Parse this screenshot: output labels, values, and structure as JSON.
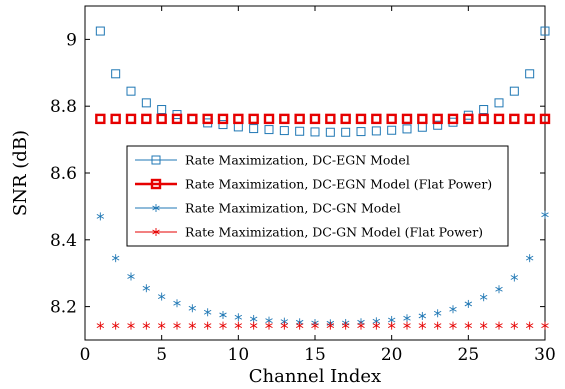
{
  "chart_data": {
    "type": "scatter",
    "xlabel": "Channel Index",
    "ylabel": "SNR (dB)",
    "xlim": [
      0,
      30
    ],
    "ylim": [
      8.1,
      9.1
    ],
    "xticks": [
      0,
      5,
      10,
      15,
      20,
      25,
      30
    ],
    "yticks": [
      8.2,
      8.4,
      8.6,
      8.8,
      9
    ],
    "ytick_labels": [
      "8.2",
      "8.4",
      "8.6",
      "8.8",
      "9"
    ],
    "grid": false,
    "legend_position": "center",
    "x": [
      1,
      2,
      3,
      4,
      5,
      6,
      7,
      8,
      9,
      10,
      11,
      12,
      13,
      14,
      15,
      16,
      17,
      18,
      19,
      20,
      21,
      22,
      23,
      24,
      25,
      26,
      27,
      28,
      29,
      30
    ],
    "series": [
      {
        "name": "Rate Maximization, DC-EGN Model",
        "marker": "square-open",
        "color": "#1f77b4",
        "values": [
          9.025,
          8.897,
          8.845,
          8.81,
          8.79,
          8.775,
          8.76,
          8.75,
          8.745,
          8.738,
          8.733,
          8.73,
          8.727,
          8.725,
          8.723,
          8.722,
          8.722,
          8.724,
          8.726,
          8.728,
          8.732,
          8.737,
          8.743,
          8.752,
          8.773,
          8.79,
          8.81,
          8.845,
          8.897,
          9.025
        ]
      },
      {
        "name": "Rate Maximization, DC-EGN Model (Flat Power)",
        "marker": "square-open-bold",
        "color": "#e60000",
        "values": [
          8.762,
          8.762,
          8.762,
          8.762,
          8.762,
          8.762,
          8.762,
          8.762,
          8.762,
          8.762,
          8.762,
          8.762,
          8.762,
          8.762,
          8.762,
          8.762,
          8.762,
          8.762,
          8.762,
          8.762,
          8.762,
          8.762,
          8.762,
          8.762,
          8.762,
          8.762,
          8.762,
          8.762,
          8.762,
          8.762
        ]
      },
      {
        "name": "Rate Maximization, DC-GN Model",
        "marker": "asterisk",
        "color": "#1f77b4",
        "values": [
          8.47,
          8.345,
          8.29,
          8.255,
          8.23,
          8.21,
          8.195,
          8.183,
          8.175,
          8.168,
          8.163,
          8.158,
          8.155,
          8.153,
          8.151,
          8.15,
          8.151,
          8.153,
          8.156,
          8.16,
          8.165,
          8.172,
          8.18,
          8.192,
          8.208,
          8.228,
          8.252,
          8.287,
          8.345,
          8.475
        ]
      },
      {
        "name": "Rate Maximization, DC-GN Model (Flat Power)",
        "marker": "asterisk",
        "color": "#e60000",
        "values": [
          8.143,
          8.143,
          8.143,
          8.143,
          8.143,
          8.143,
          8.143,
          8.143,
          8.143,
          8.143,
          8.143,
          8.143,
          8.143,
          8.143,
          8.143,
          8.143,
          8.143,
          8.143,
          8.143,
          8.143,
          8.143,
          8.143,
          8.143,
          8.143,
          8.143,
          8.143,
          8.143,
          8.143,
          8.143,
          8.143
        ]
      }
    ]
  }
}
